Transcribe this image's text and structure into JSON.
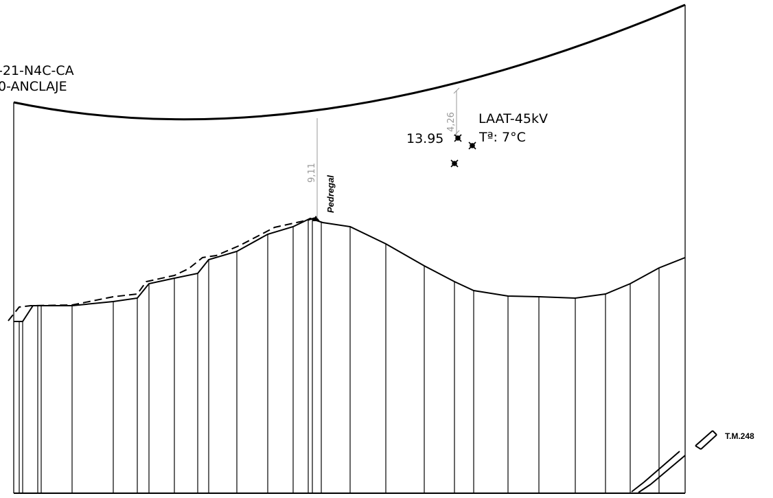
{
  "structure_label": {
    "line1": "-21-N4C-CA",
    "line2": "0-ANCLAJE"
  },
  "line_label": {
    "name": "LAAT-45kV",
    "temperature": "Tª:  7°C"
  },
  "crossing": {
    "value": "13.95",
    "clearance_label": "4,26"
  },
  "peak": {
    "name": "Pedregal",
    "clearance_label": "9,11"
  },
  "boundary": {
    "label": "T.M.248"
  },
  "colors": {
    "ink": "#000000",
    "dimension": "#999999"
  }
}
